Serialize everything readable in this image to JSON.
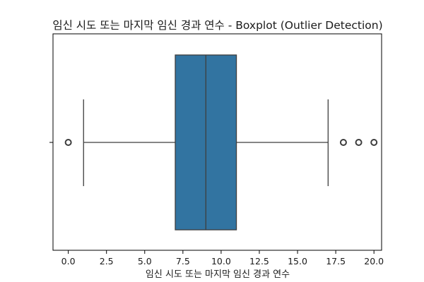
{
  "chart_data": {
    "type": "boxplot",
    "orientation": "horizontal",
    "title": "임신 시도 또는 마지막 임신 경과 연수 - Boxplot (Outlier Detection)",
    "xlabel": "임신 시도 또는 마지막 임신 경과 연수",
    "ylabel": "",
    "xlim": [
      -1.0,
      20.5
    ],
    "xticks": [
      0.0,
      2.5,
      5.0,
      7.5,
      10.0,
      12.5,
      15.0,
      17.5,
      20.0
    ],
    "xtick_labels": [
      "0.0",
      "2.5",
      "5.0",
      "7.5",
      "10.0",
      "12.5",
      "15.0",
      "17.5",
      "20.0"
    ],
    "grid": false,
    "box": {
      "whisker_low": 1.0,
      "q1": 7.0,
      "median": 9.0,
      "q3": 11.0,
      "whisker_high": 17.0,
      "outliers": [
        0.0,
        18.0,
        19.0,
        20.0
      ],
      "color": "#3274a1",
      "edge_color": "#3d3d3d"
    }
  }
}
